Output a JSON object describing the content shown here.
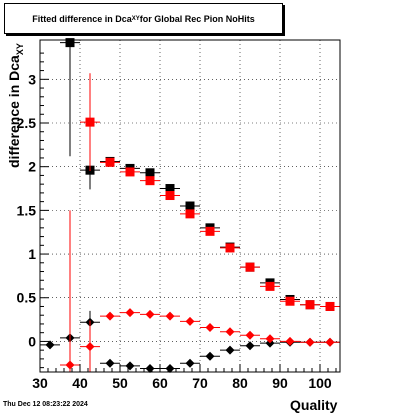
{
  "chart_data": {
    "type": "scatter",
    "title_main": "Fitted difference in Dca",
    "title_sub": "XY",
    "title_tail": " for Global Rec Pion NoHits",
    "xlabel": "Quality",
    "ylabel_main": "difference in Dca",
    "ylabel_sub": "XY",
    "footer": "Thu Dec 12 08:23:22 2024",
    "xlim": [
      30,
      105
    ],
    "ylim": [
      -0.35,
      3.45
    ],
    "grid": true,
    "x_ticks": [
      30,
      40,
      50,
      60,
      70,
      80,
      90,
      100
    ],
    "y_ticks": [
      0,
      0.5,
      1,
      1.5,
      2,
      2.5,
      3
    ],
    "y_tick_labels": [
      "0",
      "0.5",
      "1",
      "1.5",
      "2",
      "2.5",
      "3"
    ],
    "series": [
      {
        "color": "#000000",
        "marker": "square",
        "x": [
          37.5,
          42.5,
          47.5,
          52.5,
          57.5,
          62.5,
          67.5,
          72.5,
          77.5,
          82.5,
          87.5,
          92.5,
          97.5,
          102.5
        ],
        "y": [
          3.42,
          1.96,
          2.06,
          1.98,
          1.93,
          1.75,
          1.55,
          1.3,
          1.08,
          0.85,
          0.67,
          0.48,
          0.42,
          0.4
        ],
        "yerr": [
          1.3,
          0.22,
          0.04,
          0.03,
          0.03,
          0.03,
          0.03,
          0.03,
          0.02,
          0.02,
          0.02,
          0.02,
          0.02,
          0.02
        ]
      },
      {
        "color": "#ff0000",
        "marker": "square",
        "x": [
          42.5,
          47.5,
          52.5,
          57.5,
          62.5,
          67.5,
          72.5,
          77.5,
          82.5,
          87.5,
          92.5,
          97.5,
          102.5
        ],
        "y": [
          2.51,
          2.05,
          1.94,
          1.84,
          1.67,
          1.46,
          1.26,
          1.07,
          0.85,
          0.63,
          0.46,
          0.42,
          0.4
        ],
        "yerr": [
          0.56,
          0.05,
          0.03,
          0.03,
          0.03,
          0.03,
          0.03,
          0.02,
          0.02,
          0.02,
          0.02,
          0.02,
          0.02
        ]
      },
      {
        "color": "#000000",
        "marker": "diamond",
        "x": [
          32.5,
          37.5,
          42.5,
          47.5,
          52.5,
          57.5,
          62.5,
          67.5,
          72.5,
          77.5,
          82.5,
          87.5,
          92.5,
          97.5,
          102.5
        ],
        "y": [
          -0.04,
          0.04,
          0.22,
          -0.25,
          -0.28,
          -0.31,
          -0.31,
          -0.25,
          -0.17,
          -0.1,
          -0.05,
          -0.02,
          -0.01,
          -0.01,
          -0.01
        ],
        "yerr": [
          0,
          0,
          0.13,
          0,
          0,
          0,
          0,
          0,
          0,
          0,
          0,
          0,
          0,
          0,
          0
        ]
      },
      {
        "color": "#ff0000",
        "marker": "diamond",
        "x": [
          37.5,
          42.5,
          47.5,
          52.5,
          57.5,
          62.5,
          67.5,
          72.5,
          77.5,
          82.5,
          87.5,
          92.5,
          97.5,
          102.5
        ],
        "y": [
          -0.27,
          -0.06,
          0.29,
          0.33,
          0.31,
          0.29,
          0.23,
          0.16,
          0.11,
          0.07,
          0.03,
          0.0,
          -0.01,
          -0.01
        ],
        "yerr": [
          1.77,
          0.3,
          0,
          0,
          0,
          0,
          0,
          0,
          0,
          0,
          0,
          0,
          0,
          0
        ]
      }
    ]
  }
}
